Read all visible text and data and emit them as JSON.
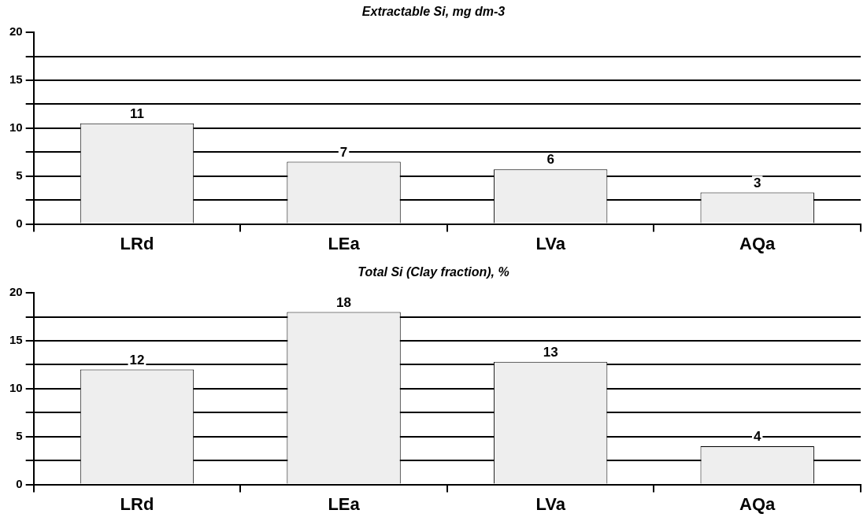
{
  "chart_data": [
    {
      "type": "bar",
      "title": "Extractable Si, mg dm-3",
      "categories": [
        "LRd",
        "LEa",
        "LVa",
        "AQa"
      ],
      "values": [
        10.5,
        6.5,
        5.7,
        3.3
      ],
      "value_labels": [
        "11",
        "7",
        "6",
        "3"
      ],
      "color": "#eeeeee",
      "ylim": [
        0,
        20
      ],
      "yticks": [
        0,
        {
          "value": 2.5,
          "label": null
        },
        5,
        {
          "value": 7.5,
          "label": null
        },
        10,
        {
          "value": 12.5,
          "label": null
        },
        15,
        {
          "value": 17.5,
          "label": null
        },
        20
      ],
      "grid": "y",
      "legend": false
    },
    {
      "type": "bar",
      "title": "Total Si (Clay fraction), %",
      "categories": [
        "LRd",
        "LEa",
        "LVa",
        "AQa"
      ],
      "values": [
        12,
        18,
        12.8,
        4
      ],
      "value_labels": [
        "12",
        "18",
        "13",
        "4"
      ],
      "color": "#eeeeee",
      "ylim": [
        0,
        20
      ],
      "yticks": [
        0,
        {
          "value": 2.5,
          "label": null
        },
        5,
        {
          "value": 7.5,
          "label": null
        },
        10,
        {
          "value": 12.5,
          "label": null
        },
        15,
        {
          "value": 17.5,
          "label": null
        },
        20
      ],
      "grid": "y",
      "legend": false
    }
  ]
}
